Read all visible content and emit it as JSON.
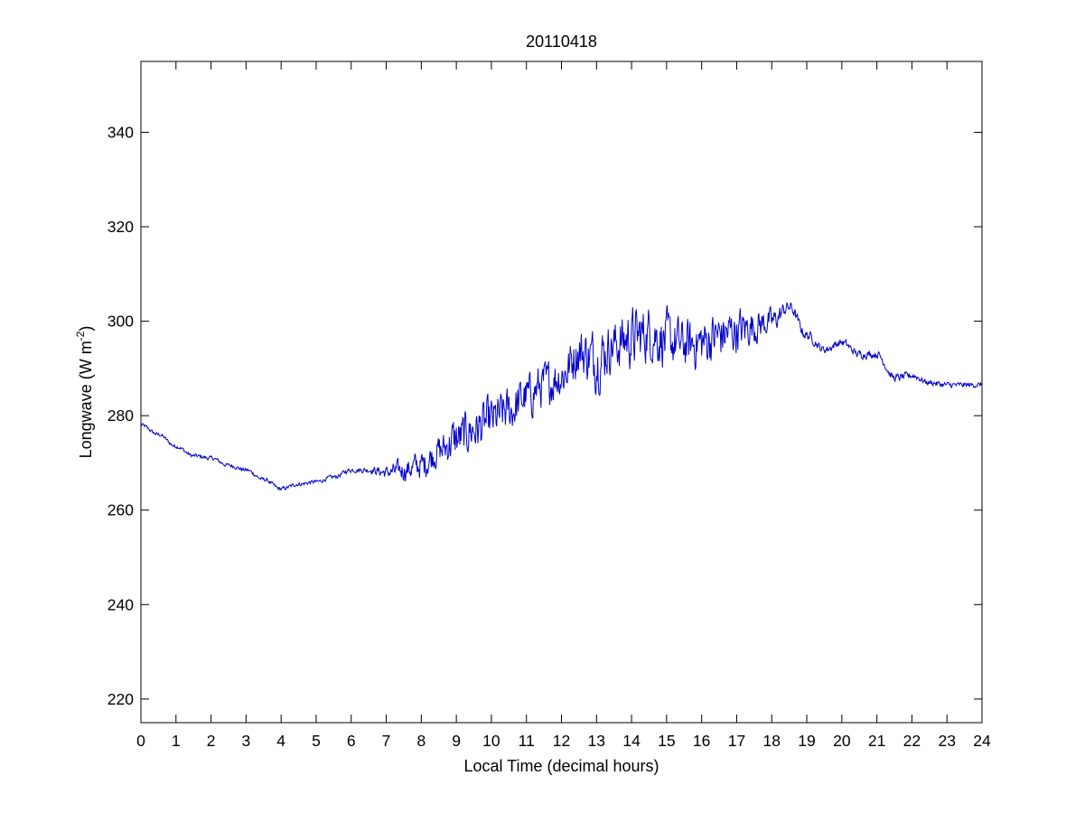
{
  "chart_data": {
    "type": "line",
    "title": "20110418",
    "xlabel": "Local Time (decimal hours)",
    "ylabel": {
      "main": "Longwave (W m",
      "superscript": "-2",
      "close": ")"
    },
    "xlim": [
      0,
      24
    ],
    "ylim": [
      215,
      355
    ],
    "xticks": [
      0,
      1,
      2,
      3,
      4,
      5,
      6,
      7,
      8,
      9,
      10,
      11,
      12,
      13,
      14,
      15,
      16,
      17,
      18,
      19,
      20,
      21,
      22,
      23,
      24
    ],
    "yticks": [
      220,
      240,
      260,
      280,
      300,
      320,
      340
    ],
    "grid": false,
    "legend": "none",
    "series": [
      {
        "color": "#0000cc",
        "x": [
          0,
          0.5,
          1,
          1.5,
          2,
          2.5,
          3,
          3.5,
          4,
          4.5,
          5,
          5.5,
          6,
          6.5,
          7,
          7.5,
          8,
          8.5,
          9,
          9.5,
          10,
          10.5,
          11,
          11.5,
          12,
          12.5,
          13,
          13.5,
          14,
          14.5,
          15,
          15.5,
          16,
          16.5,
          17,
          17.5,
          18,
          18.5,
          19,
          19.5,
          20,
          20.5,
          21,
          21.5,
          22,
          22.5,
          23,
          23.5,
          24
        ],
        "y": [
          278,
          276,
          273.5,
          271.5,
          271,
          269.5,
          268.5,
          266.5,
          264.5,
          265.5,
          266,
          267,
          268.5,
          268.5,
          268,
          268.5,
          269.5,
          272.5,
          275,
          277,
          279,
          281,
          284,
          286.5,
          288.5,
          293.5,
          292,
          295,
          296.5,
          297.5,
          296,
          295,
          295.5,
          297,
          298,
          299,
          300,
          303,
          297,
          294,
          295.5,
          293,
          293,
          288,
          288.5,
          287,
          286.5,
          286.5,
          286.5
        ],
        "noise_amplitude": [
          0.4,
          0.4,
          0.4,
          0.4,
          0.4,
          0.4,
          0.4,
          0.4,
          0.4,
          0.4,
          0.4,
          0.4,
          0.5,
          0.6,
          1.2,
          2.2,
          2.8,
          3.2,
          4.5,
          4.5,
          4.5,
          4.5,
          4.5,
          4.5,
          4.5,
          5,
          6,
          5,
          6,
          5.5,
          5.5,
          5,
          5,
          5,
          4.5,
          3.5,
          2.5,
          1.2,
          1,
          0.8,
          0.8,
          0.8,
          0.8,
          0.8,
          0.7,
          0.6,
          0.6,
          0.5,
          0.5
        ]
      }
    ]
  }
}
